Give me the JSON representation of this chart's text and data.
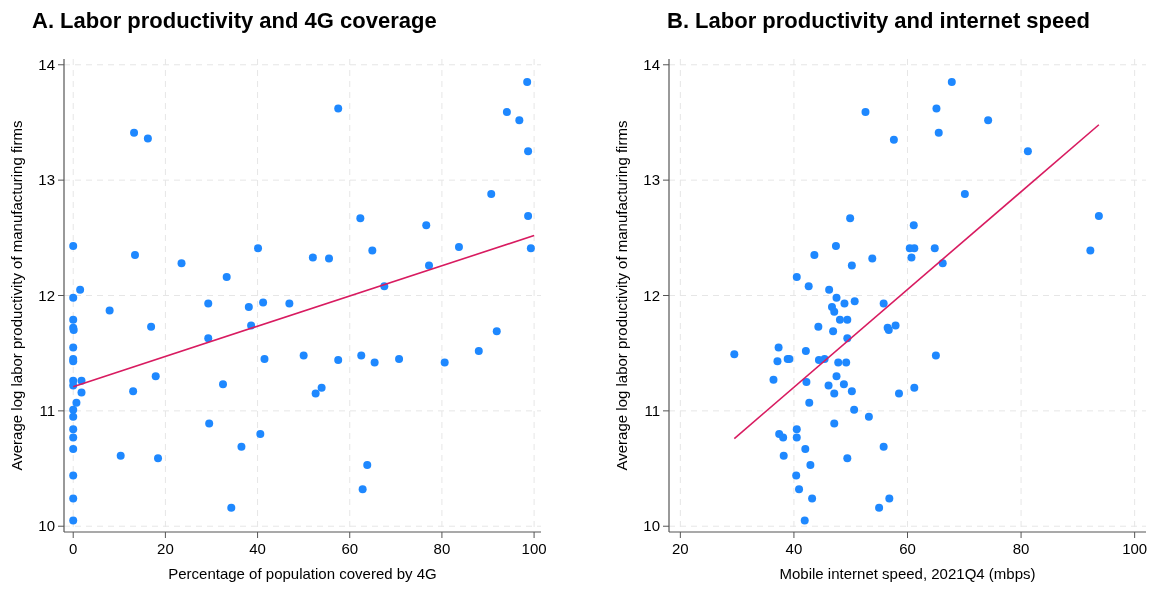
{
  "chart_data": [
    {
      "type": "scatter",
      "title": "A. Labor productivity and 4G coverage",
      "xlabel": "Percentage of population covered by 4G",
      "ylabel": "Average log labor productivity of manufacturing firms",
      "xlim": [
        -2,
        101.5
      ],
      "ylim": [
        9.95,
        14.05
      ],
      "xticks": [
        0,
        20,
        40,
        60,
        80,
        100
      ],
      "yticks": [
        10,
        11,
        12,
        13,
        14
      ],
      "grid": true,
      "series": [
        {
          "marker": "circle",
          "color": "#1e88ff",
          "x": [
            13.2,
            16.2,
            0,
            13.4,
            23.5,
            33.3,
            40.1,
            1.5,
            0,
            29.3,
            38.1,
            41.2,
            46.9,
            7.9,
            0,
            0,
            0.1,
            16.9,
            38.6,
            29.3,
            0,
            0,
            0,
            41.5,
            50,
            17.9,
            0,
            0,
            1.8,
            1.8,
            13,
            32.5,
            0.7,
            0,
            0,
            29.5,
            40.6,
            0,
            0,
            0,
            36.5,
            10.3,
            18.4,
            0,
            0,
            34.3,
            0,
            57.5,
            98.5,
            94.1,
            96.8,
            98.7,
            90.7,
            62.3,
            76.6,
            98.7,
            52,
            55.5,
            64.9,
            83.7,
            99.3,
            77.2,
            67.5,
            91.9,
            88,
            57.5,
            62.5,
            65.4,
            70.7,
            80.6,
            53.9,
            52.6,
            63.8,
            62.8
          ],
          "values": [
            13.41,
            13.36,
            12.43,
            12.35,
            12.28,
            12.16,
            12.41,
            12.05,
            11.98,
            11.93,
            11.9,
            11.94,
            11.93,
            11.87,
            11.79,
            11.72,
            11.7,
            11.73,
            11.74,
            11.63,
            11.55,
            11.45,
            11.43,
            11.45,
            11.48,
            11.3,
            11.26,
            11.22,
            11.26,
            11.16,
            11.17,
            11.23,
            11.07,
            11.01,
            10.95,
            10.89,
            10.8,
            10.84,
            10.77,
            10.67,
            10.69,
            10.61,
            10.59,
            10.44,
            10.24,
            10.16,
            10.05,
            13.62,
            13.85,
            13.59,
            13.52,
            13.25,
            12.88,
            12.67,
            12.61,
            12.69,
            12.33,
            12.32,
            12.39,
            12.42,
            12.41,
            12.26,
            12.08,
            11.69,
            11.52,
            11.44,
            11.48,
            11.42,
            11.45,
            11.42,
            11.2,
            11.15,
            10.53,
            10.32
          ]
        },
        {
          "type": "line",
          "color": "#d81b60",
          "x": [
            0,
            100
          ],
          "values": [
            11.21,
            12.52
          ]
        }
      ]
    },
    {
      "type": "scatter",
      "title": "B. Labor productivity and internet speed",
      "xlabel": "Mobile internet speed, 2021Q4 (mbps)",
      "ylabel": "Average log labor productivity of manufacturing firms",
      "xlim": [
        18,
        102
      ],
      "ylim": [
        9.95,
        14.05
      ],
      "xticks": [
        20,
        40,
        60,
        80,
        100
      ],
      "yticks": [
        10,
        11,
        12,
        13,
        14
      ],
      "grid": true,
      "series": [
        {
          "marker": "circle",
          "color": "#1e88ff",
          "x": [
            52.6,
            57.6,
            49.9,
            47.4,
            43.6,
            53.8,
            50.2,
            40.5,
            42.6,
            46.2,
            47.5,
            48.9,
            50.7,
            55.8,
            46.7,
            47.1,
            48.1,
            49.4,
            44.3,
            46.9,
            49.4,
            56.5,
            56.7,
            57.9,
            29.5,
            37.3,
            37.1,
            38.9,
            39.2,
            42.1,
            44.4,
            45.4,
            47.8,
            49.2,
            36.4,
            42.2,
            47.5,
            46.1,
            48.8,
            47.1,
            50.2,
            58.5,
            42.7,
            50.6,
            53.2,
            47.1,
            37.4,
            38.1,
            40.5,
            40.5,
            42,
            55.8,
            38.2,
            49.4,
            42.9,
            40.4,
            40.9,
            43.2,
            56.8,
            55,
            41.9,
            67.8,
            65.1,
            74.2,
            65.5,
            81.2,
            70.1,
            61.1,
            93.7,
            60.4,
            61.2,
            64.8,
            60.7,
            92.2,
            66.2,
            65,
            61.2
          ],
          "values": [
            13.59,
            13.35,
            12.67,
            12.43,
            12.35,
            12.32,
            12.26,
            12.16,
            12.08,
            12.05,
            11.98,
            11.93,
            11.95,
            11.93,
            11.9,
            11.86,
            11.79,
            11.79,
            11.73,
            11.69,
            11.63,
            11.72,
            11.7,
            11.74,
            11.49,
            11.55,
            11.43,
            11.45,
            11.45,
            11.52,
            11.44,
            11.45,
            11.42,
            11.42,
            11.27,
            11.25,
            11.3,
            11.22,
            11.23,
            11.15,
            11.17,
            11.15,
            11.07,
            11.01,
            10.95,
            10.89,
            10.8,
            10.77,
            10.84,
            10.77,
            10.67,
            10.69,
            10.61,
            10.59,
            10.53,
            10.44,
            10.32,
            10.24,
            10.24,
            10.16,
            10.05,
            13.85,
            13.62,
            13.52,
            13.41,
            13.25,
            12.88,
            12.61,
            12.69,
            12.41,
            12.41,
            12.41,
            12.33,
            12.39,
            12.28,
            11.48,
            11.2
          ]
        },
        {
          "type": "line",
          "color": "#d81b60",
          "x": [
            29.5,
            93.7
          ],
          "values": [
            10.76,
            13.48
          ]
        }
      ]
    }
  ]
}
